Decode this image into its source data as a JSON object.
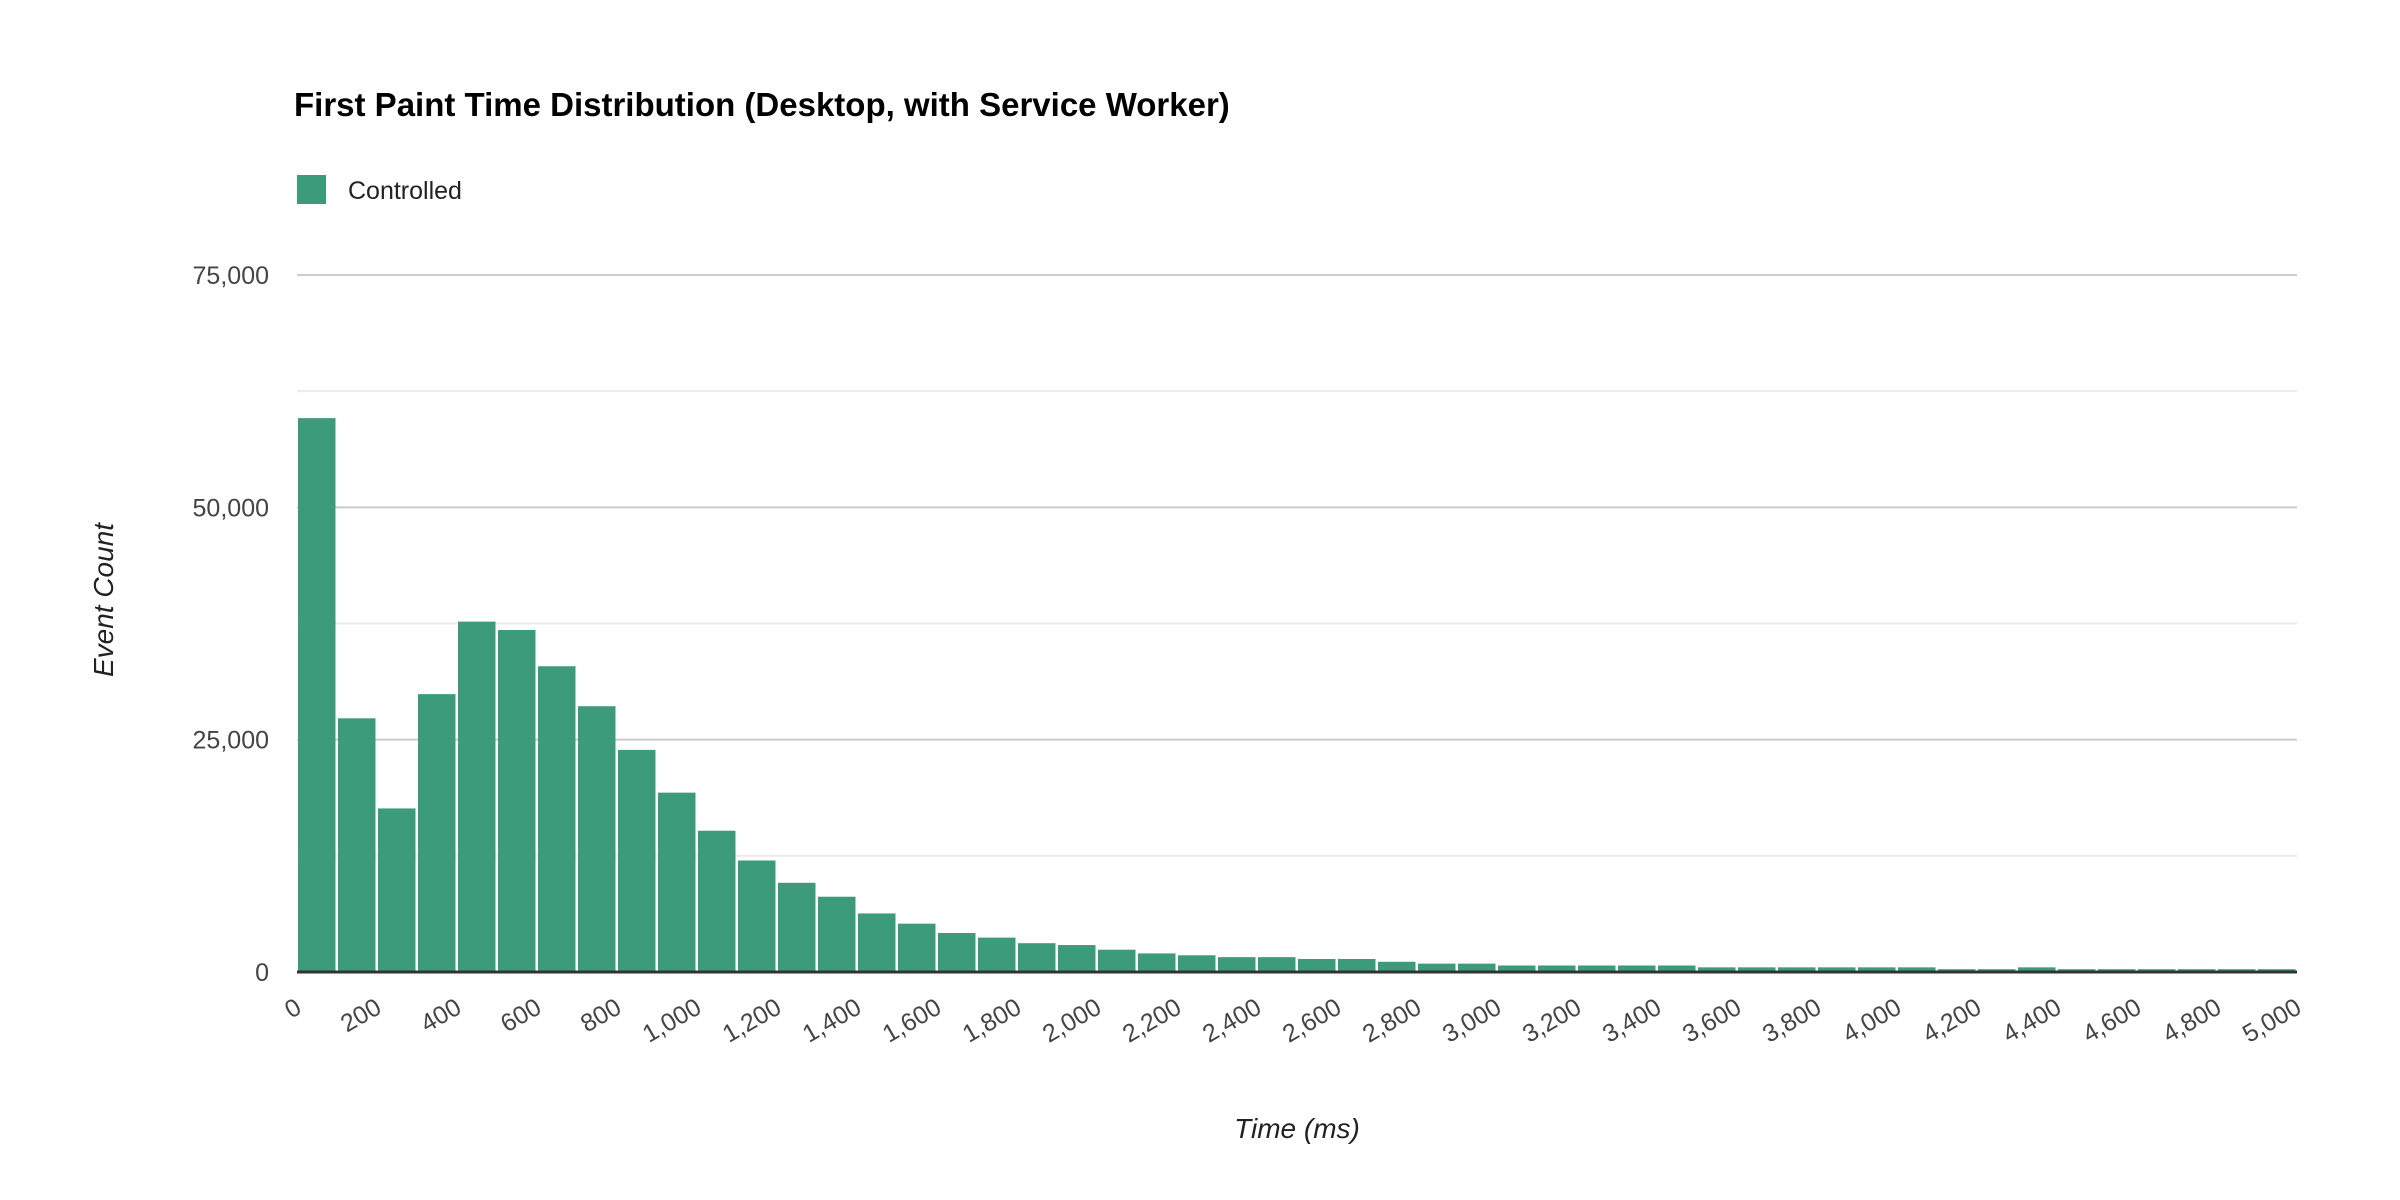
{
  "chart_data": {
    "type": "bar",
    "title": "First Paint Time Distribution (Desktop, with Service Worker)",
    "xlabel": "Time (ms)",
    "ylabel": "Event Count",
    "legend": {
      "position": "top-left",
      "entries": [
        "Controlled"
      ]
    },
    "colors": {
      "Controlled": "#3b9b7b"
    },
    "grid": true,
    "xlim": [
      0,
      5000
    ],
    "ylim": [
      0,
      75000
    ],
    "bin_width": 100,
    "x_ticks": [
      0,
      200,
      400,
      600,
      800,
      1000,
      1200,
      1400,
      1600,
      1800,
      2000,
      2200,
      2400,
      2600,
      2800,
      3000,
      3200,
      3400,
      3600,
      3800,
      4000,
      4200,
      4400,
      4600,
      4800,
      5000
    ],
    "x_tick_labels": [
      "0",
      "200",
      "400",
      "600",
      "800",
      "1,000",
      "1,200",
      "1,400",
      "1,600",
      "1,800",
      "2,000",
      "2,200",
      "2,400",
      "2,600",
      "2,800",
      "3,000",
      "3,200",
      "3,400",
      "3,600",
      "3,800",
      "4,000",
      "4,200",
      "4,400",
      "4,600",
      "4,800",
      "5,000"
    ],
    "y_ticks": [
      0,
      25000,
      50000,
      75000
    ],
    "y_tick_labels": [
      "0",
      "25,000",
      "50,000",
      "75,000"
    ],
    "series": [
      {
        "name": "Controlled",
        "bin_starts": [
          0,
          100,
          200,
          300,
          400,
          500,
          600,
          700,
          800,
          900,
          1000,
          1100,
          1200,
          1300,
          1400,
          1500,
          1600,
          1700,
          1800,
          1900,
          2000,
          2100,
          2200,
          2300,
          2400,
          2500,
          2600,
          2700,
          2800,
          2900,
          3000,
          3100,
          3200,
          3300,
          3400,
          3500,
          3600,
          3700,
          3800,
          3900,
          4000,
          4100,
          4200,
          4300,
          4400,
          4500,
          4600,
          4700,
          4800,
          4900
        ],
        "values": [
          59600,
          27300,
          17600,
          29900,
          37700,
          36800,
          32900,
          28600,
          23900,
          19300,
          15200,
          12000,
          9600,
          8100,
          6300,
          5200,
          4200,
          3700,
          3100,
          2900,
          2400,
          2000,
          1800,
          1600,
          1600,
          1400,
          1400,
          1100,
          900,
          900,
          700,
          700,
          700,
          700,
          700,
          500,
          500,
          500,
          500,
          500,
          500,
          300,
          300,
          500,
          300,
          300,
          300,
          300,
          300,
          300
        ]
      }
    ]
  }
}
